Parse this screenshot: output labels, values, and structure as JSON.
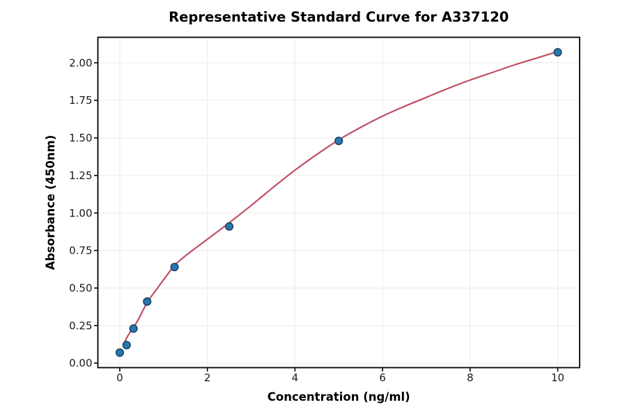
{
  "chart_data": {
    "type": "scatter",
    "title": "Representative Standard Curve for A337120",
    "xlabel": "Concentration (ng/ml)",
    "ylabel": "Absorbance (450nm)",
    "xlim": [
      -0.5,
      10.5
    ],
    "ylim": [
      -0.03,
      2.17
    ],
    "grid": true,
    "legend_position": "none",
    "x_ticks": [
      0,
      2,
      4,
      6,
      8,
      10
    ],
    "x_tick_labels": [
      "0",
      "2",
      "4",
      "6",
      "8",
      "10"
    ],
    "y_ticks": [
      0,
      0.25,
      0.5,
      0.75,
      1.0,
      1.25,
      1.5,
      1.75,
      2.0
    ],
    "y_tick_labels": [
      "0.00",
      "0.25",
      "0.50",
      "0.75",
      "1.00",
      "1.25",
      "1.50",
      "1.75",
      "2.00"
    ],
    "points": {
      "x": [
        0,
        0.156,
        0.3125,
        0.625,
        1.25,
        2.5,
        5,
        10
      ],
      "y": [
        0.07,
        0.12,
        0.23,
        0.41,
        0.64,
        0.91,
        1.48,
        2.07
      ]
    },
    "fit_curve": {
      "x": [
        0.1,
        0.2,
        0.3125,
        0.45,
        0.625,
        0.8,
        1.0,
        1.25,
        1.5,
        2.0,
        2.5,
        3.0,
        3.5,
        4.0,
        4.5,
        5.0,
        5.5,
        6.0,
        6.5,
        7.0,
        7.5,
        8.0,
        8.5,
        9.0,
        9.5,
        10.0
      ],
      "y": [
        0.135,
        0.19,
        0.237,
        0.305,
        0.405,
        0.475,
        0.555,
        0.65,
        0.715,
        0.825,
        0.935,
        1.05,
        1.17,
        1.285,
        1.39,
        1.487,
        1.57,
        1.645,
        1.71,
        1.77,
        1.83,
        1.885,
        1.935,
        1.985,
        2.03,
        2.075
      ]
    },
    "colors": {
      "marker_fill": "#2878b0",
      "marker_edge": "#17405f",
      "curve": "#c14f63",
      "grid": "#ebebeb",
      "spine": "#000000",
      "text": "#1a1a1a",
      "background": "#ffffff"
    }
  }
}
